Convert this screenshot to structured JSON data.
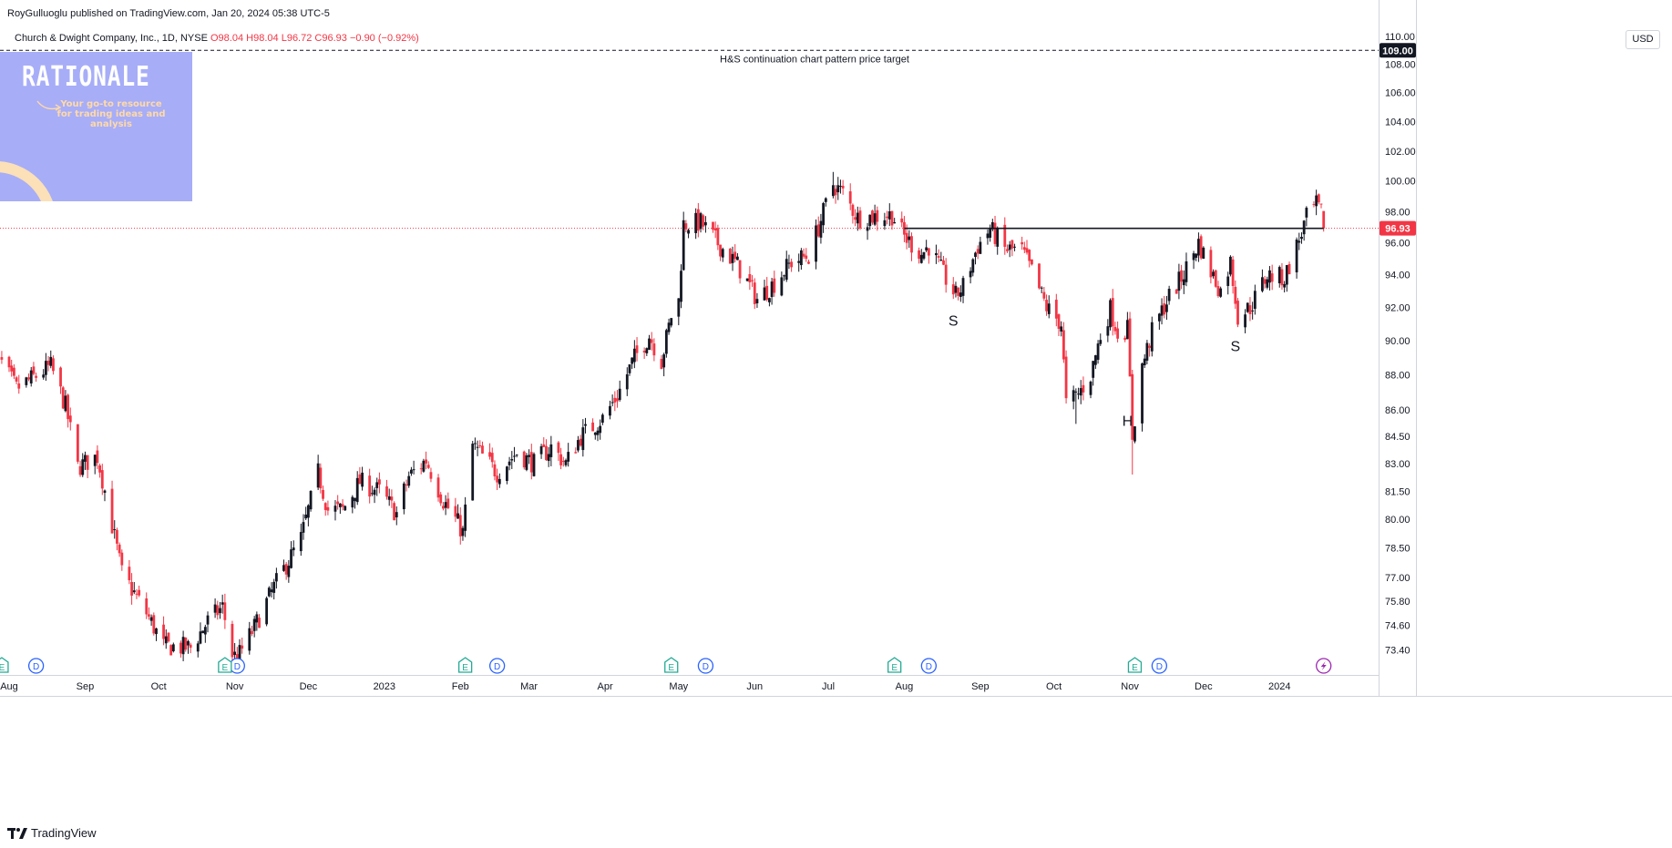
{
  "header": {
    "published": "RoyGulluoglu published on TradingView.com, Jan 20, 2024 05:38 UTC-5",
    "symbol": "Church & Dwight Company, Inc., 1D, NYSE",
    "ohlc": {
      "o": "O98.04",
      "h": "H98.04",
      "l": "L96.72",
      "c": "C96.93",
      "change": "−0.90 (−0.92%)"
    }
  },
  "logo": {
    "title": "RATIONALE",
    "tagline": "Your go-to resource for trading ideas and analysis"
  },
  "currency": "USD",
  "footer": {
    "brand": "TradingView"
  },
  "colors": {
    "up": "#131722",
    "down": "#f23645",
    "price_line": "#f23645",
    "target_line": "#131722",
    "logo_bg": "#a7adf7"
  },
  "chart_data": {
    "type": "candlestick",
    "title": "Church & Dwight Company, Inc., 1D, NYSE",
    "y_axis": {
      "side": "right",
      "scale": "log",
      "ylim": [
        72.2,
        111.2
      ],
      "tick_labels": [
        "110.00",
        "108.00",
        "106.00",
        "104.00",
        "102.00",
        "100.00",
        "98.00",
        "96.00",
        "94.00",
        "92.00",
        "90.00",
        "88.00",
        "86.00",
        "84.50",
        "83.00",
        "81.50",
        "80.00",
        "78.50",
        "77.00",
        "75.80",
        "74.60",
        "73.40"
      ]
    },
    "x_axis": {
      "range": [
        "2022-08-01",
        "2024-01-31"
      ],
      "labels": [
        {
          "label": "Aug",
          "date": "2022-08-01"
        },
        {
          "label": "Sep",
          "date": "2022-09-01"
        },
        {
          "label": "Oct",
          "date": "2022-10-01"
        },
        {
          "label": "Nov",
          "date": "2022-11-01"
        },
        {
          "label": "Dec",
          "date": "2022-12-01"
        },
        {
          "label": "2023",
          "date": "2023-01-01"
        },
        {
          "label": "Feb",
          "date": "2023-02-01"
        },
        {
          "label": "Mar",
          "date": "2023-03-01"
        },
        {
          "label": "Apr",
          "date": "2023-04-01"
        },
        {
          "label": "May",
          "date": "2023-05-01"
        },
        {
          "label": "Jun",
          "date": "2023-06-01"
        },
        {
          "label": "Jul",
          "date": "2023-07-01"
        },
        {
          "label": "Aug",
          "date": "2023-08-01"
        },
        {
          "label": "Sep",
          "date": "2023-09-01"
        },
        {
          "label": "Oct",
          "date": "2023-10-01"
        },
        {
          "label": "Nov",
          "date": "2023-11-01"
        },
        {
          "label": "Dec",
          "date": "2023-12-01"
        },
        {
          "label": "2024",
          "date": "2024-01-01"
        }
      ]
    },
    "price_path": [
      [
        "2022-07-25",
        89.6
      ],
      [
        "2022-08-04",
        87.2
      ],
      [
        "2022-08-18",
        88.5
      ],
      [
        "2022-08-24",
        86.2
      ],
      [
        "2022-08-29",
        82.8
      ],
      [
        "2022-09-06",
        83.4
      ],
      [
        "2022-09-16",
        77.2
      ],
      [
        "2022-09-26",
        75.2
      ],
      [
        "2022-10-03",
        73.6
      ],
      [
        "2022-10-14",
        73.5
      ],
      [
        "2022-10-21",
        74.8
      ],
      [
        "2022-10-27",
        75.5
      ],
      [
        "2022-10-31",
        73.2
      ],
      [
        "2022-11-02",
        73.0
      ],
      [
        "2022-11-09",
        74.5
      ],
      [
        "2022-11-17",
        76.5
      ],
      [
        "2022-11-28",
        79.0
      ],
      [
        "2022-12-05",
        82.5
      ],
      [
        "2022-12-09",
        80.5
      ],
      [
        "2022-12-15",
        80.5
      ],
      [
        "2022-12-22",
        82.0
      ],
      [
        "2022-12-30",
        81.5
      ],
      [
        "2023-01-06",
        80.3
      ],
      [
        "2023-01-11",
        82.3
      ],
      [
        "2023-01-18",
        83.2
      ],
      [
        "2023-01-25",
        81.0
      ],
      [
        "2023-01-31",
        79.8
      ],
      [
        "2023-02-02",
        79.3
      ],
      [
        "2023-02-06",
        84.0
      ],
      [
        "2023-02-16",
        82.5
      ],
      [
        "2023-02-24",
        83.6
      ],
      [
        "2023-03-03",
        83.0
      ],
      [
        "2023-03-10",
        83.9
      ],
      [
        "2023-03-16",
        83.0
      ],
      [
        "2023-03-22",
        84.5
      ],
      [
        "2023-03-31",
        85.5
      ],
      [
        "2023-04-06",
        86.8
      ],
      [
        "2023-04-13",
        89.0
      ],
      [
        "2023-04-19",
        90.3
      ],
      [
        "2023-04-24",
        88.8
      ],
      [
        "2023-04-28",
        91.5
      ],
      [
        "2023-05-01",
        92.4
      ],
      [
        "2023-05-03",
        97.2
      ],
      [
        "2023-05-10",
        97.3
      ],
      [
        "2023-05-18",
        95.8
      ],
      [
        "2023-05-25",
        94.6
      ],
      [
        "2023-06-02",
        92.5
      ],
      [
        "2023-06-09",
        93.5
      ],
      [
        "2023-06-16",
        94.8
      ],
      [
        "2023-06-23",
        95.2
      ],
      [
        "2023-06-27",
        97.0
      ],
      [
        "2023-07-03",
        99.8
      ],
      [
        "2023-07-07",
        99.2
      ],
      [
        "2023-07-13",
        97.6
      ],
      [
        "2023-07-20",
        97.7
      ],
      [
        "2023-07-27",
        97.8
      ],
      [
        "2023-08-01",
        96.4
      ],
      [
        "2023-08-08",
        95.3
      ],
      [
        "2023-08-11",
        95.8
      ],
      [
        "2023-08-17",
        94.0
      ],
      [
        "2023-08-22",
        92.7
      ],
      [
        "2023-08-25",
        93.3
      ],
      [
        "2023-08-31",
        95.8
      ],
      [
        "2023-09-05",
        96.9
      ],
      [
        "2023-09-11",
        95.6
      ],
      [
        "2023-09-18",
        95.5
      ],
      [
        "2023-09-22",
        94.2
      ],
      [
        "2023-09-28",
        92.0
      ],
      [
        "2023-10-04",
        91.0
      ],
      [
        "2023-10-06",
        86.3
      ],
      [
        "2023-10-11",
        86.9
      ],
      [
        "2023-10-16",
        88.0
      ],
      [
        "2023-10-20",
        90.3
      ],
      [
        "2023-10-24",
        91.9
      ],
      [
        "2023-10-27",
        90.5
      ],
      [
        "2023-10-31",
        90.7
      ],
      [
        "2023-11-02",
        84.5
      ],
      [
        "2023-11-06",
        88.5
      ],
      [
        "2023-11-10",
        90.5
      ],
      [
        "2023-11-16",
        92.4
      ],
      [
        "2023-11-22",
        93.8
      ],
      [
        "2023-11-29",
        96.0
      ],
      [
        "2023-12-04",
        94.2
      ],
      [
        "2023-12-08",
        93.0
      ],
      [
        "2023-12-12",
        94.8
      ],
      [
        "2023-12-15",
        91.5
      ],
      [
        "2023-12-20",
        92.0
      ],
      [
        "2023-12-27",
        94.0
      ],
      [
        "2024-01-03",
        93.8
      ],
      [
        "2024-01-09",
        96.2
      ],
      [
        "2024-01-12",
        97.6
      ],
      [
        "2024-01-16",
        98.4
      ],
      [
        "2024-01-18",
        97.9
      ],
      [
        "2024-01-19",
        96.93
      ]
    ],
    "last_candle": {
      "date": "2024-01-19",
      "open": 98.04,
      "high": 98.04,
      "low": 96.72,
      "close": 96.93
    },
    "extremes": [
      {
        "date": "2023-05-01",
        "low": 93.8
      },
      {
        "date": "2023-07-03",
        "high": 100.6
      },
      {
        "date": "2023-10-10",
        "low": 85.2
      },
      {
        "date": "2023-11-02",
        "low": 82.4
      },
      {
        "date": "2024-01-16",
        "high": 99.4
      }
    ],
    "current_price": {
      "value": 96.93,
      "label": "96.93"
    },
    "neckline": {
      "value": 96.93,
      "from": "2023-08-01",
      "to": "2024-01-19"
    },
    "target": {
      "value": 109.0,
      "label": "109.00",
      "text": "H&S continuation chart pattern price target"
    },
    "pattern_labels": [
      {
        "text": "S",
        "date": "2023-08-21",
        "price": 90.9
      },
      {
        "text": "H",
        "date": "2023-10-31",
        "price": 85.1
      },
      {
        "text": "S",
        "date": "2023-12-14",
        "price": 89.4
      }
    ],
    "events": [
      {
        "type": "E",
        "date": "2022-07-29"
      },
      {
        "type": "D",
        "date": "2022-08-12"
      },
      {
        "type": "D",
        "date": "2022-11-02"
      },
      {
        "type": "E",
        "date": "2022-10-28"
      },
      {
        "type": "E",
        "date": "2023-02-03"
      },
      {
        "type": "D",
        "date": "2023-02-16"
      },
      {
        "type": "E",
        "date": "2023-04-28"
      },
      {
        "type": "D",
        "date": "2023-05-12"
      },
      {
        "type": "E",
        "date": "2023-07-28"
      },
      {
        "type": "D",
        "date": "2023-08-11"
      },
      {
        "type": "E",
        "date": "2023-11-03"
      },
      {
        "type": "D",
        "date": "2023-11-13"
      },
      {
        "type": "F",
        "date": "2024-01-19"
      }
    ]
  }
}
